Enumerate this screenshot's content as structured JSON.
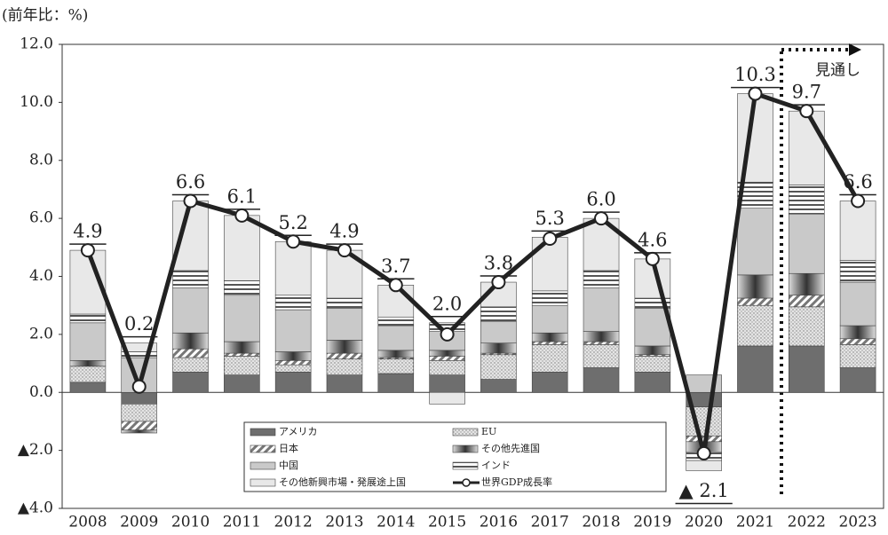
{
  "chart_data": {
    "type": "bar",
    "unit_label": "(前年比：%)",
    "annotation": "見通し",
    "categories": [
      "2008",
      "2009",
      "2010",
      "2011",
      "2012",
      "2013",
      "2014",
      "2015",
      "2016",
      "2017",
      "2018",
      "2019",
      "2020",
      "2021",
      "2022",
      "2023"
    ],
    "ylim": [
      -4,
      12
    ],
    "yticks": [
      {
        "value": 12,
        "label": "12.0"
      },
      {
        "value": 10,
        "label": "10.0"
      },
      {
        "value": 8,
        "label": "8.0"
      },
      {
        "value": 6,
        "label": "6.0"
      },
      {
        "value": 4,
        "label": "4.0"
      },
      {
        "value": 2,
        "label": "2.0"
      },
      {
        "value": 0,
        "label": "0.0"
      },
      {
        "value": -2,
        "label": "▲2.0"
      },
      {
        "value": -4,
        "label": "▲4.0"
      }
    ],
    "series": [
      {
        "name": "アメリカ",
        "color": "#6e6e6e",
        "fill_pattern": "solid",
        "values": [
          0.35,
          -0.4,
          0.7,
          0.6,
          0.7,
          0.6,
          0.65,
          0.6,
          0.45,
          0.7,
          0.85,
          0.7,
          -0.5,
          1.6,
          1.6,
          0.85
        ]
      },
      {
        "name": "EU",
        "color": "#d8d8d8",
        "fill_pattern": "dots",
        "values": [
          0.55,
          -0.6,
          0.5,
          0.65,
          0.25,
          0.55,
          0.5,
          0.5,
          0.85,
          0.95,
          0.8,
          0.55,
          -1.0,
          1.4,
          1.35,
          0.8
        ]
      },
      {
        "name": "日本",
        "color": "#888888",
        "fill_pattern": "hatch",
        "values": [
          0.0,
          -0.3,
          0.3,
          0.1,
          0.15,
          0.2,
          0.05,
          0.15,
          0.05,
          0.1,
          0.1,
          0.05,
          -0.2,
          0.25,
          0.4,
          0.2
        ]
      },
      {
        "name": "その他先進国",
        "color": "#555555",
        "fill_pattern": "gradient",
        "values": [
          0.2,
          -0.1,
          0.55,
          0.4,
          0.3,
          0.45,
          0.25,
          0.2,
          0.35,
          0.3,
          0.35,
          0.3,
          -0.35,
          0.8,
          0.75,
          0.45
        ]
      },
      {
        "name": "中国",
        "color": "#c9c9c9",
        "fill_pattern": "solid",
        "values": [
          1.3,
          1.2,
          1.55,
          1.6,
          1.45,
          1.1,
          0.85,
          0.65,
          0.75,
          0.95,
          1.5,
          1.3,
          0.6,
          2.3,
          2.05,
          1.5
        ]
      },
      {
        "name": "インド",
        "color": "#ffffff",
        "fill_pattern": "lines",
        "values": [
          0.3,
          0.2,
          0.6,
          0.5,
          0.5,
          0.35,
          0.3,
          0.3,
          0.5,
          0.5,
          0.6,
          0.35,
          -0.3,
          0.9,
          1.0,
          0.75
        ]
      },
      {
        "name": "その他新興市場・発展途上国",
        "color": "#e8e8e8",
        "fill_pattern": "solid",
        "values": [
          2.2,
          0.3,
          2.4,
          2.25,
          1.85,
          1.65,
          1.1,
          -0.4,
          0.85,
          1.85,
          1.8,
          1.35,
          -0.35,
          3.05,
          2.55,
          2.05
        ]
      },
      {
        "name": "世界GDP成長率",
        "color": "#222222",
        "kind": "line",
        "values": [
          4.9,
          0.2,
          6.6,
          6.1,
          5.2,
          4.9,
          3.7,
          2.0,
          3.8,
          5.3,
          6.0,
          4.6,
          -2.1,
          10.3,
          9.7,
          6.6
        ],
        "value_labels": [
          "4.9",
          "0.2",
          "6.6",
          "6.1",
          "5.2",
          "4.9",
          "3.7",
          "2.0",
          "3.8",
          "5.3",
          "6.0",
          "4.6",
          "▲ 2.1",
          "10.3",
          "9.7",
          "6.6"
        ]
      }
    ]
  }
}
